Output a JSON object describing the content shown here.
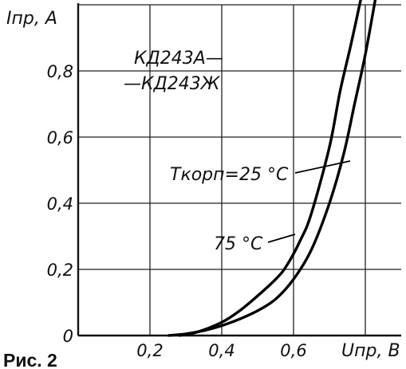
{
  "figure_caption": "Рис. 2",
  "chart_data": {
    "type": "line",
    "xlabel": "Uпр, В",
    "ylabel": "Iпр, А",
    "x_unit": "В",
    "y_unit": "А",
    "xlim": [
      0,
      0.9
    ],
    "ylim": [
      0,
      1.0
    ],
    "x_ticks": [
      {
        "value": 0.2,
        "label": "0,2"
      },
      {
        "value": 0.4,
        "label": "0,4"
      },
      {
        "value": 0.6,
        "label": "0,6"
      }
    ],
    "y_ticks": [
      {
        "value": 0,
        "label": "0"
      },
      {
        "value": 0.2,
        "label": "0,2"
      },
      {
        "value": 0.4,
        "label": "0,4"
      },
      {
        "value": 0.6,
        "label": "0,6"
      },
      {
        "value": 0.8,
        "label": "0,8"
      }
    ],
    "grid": true,
    "device_labels": [
      "КД243А—",
      "—КД243Ж"
    ],
    "series": [
      {
        "label": "Tкорп=25 °С",
        "x": [
          0.25,
          0.3,
          0.35,
          0.4,
          0.45,
          0.5,
          0.55,
          0.6,
          0.65,
          0.7,
          0.74,
          0.77,
          0.8,
          0.83
        ],
        "y": [
          0.0,
          0.005,
          0.015,
          0.03,
          0.05,
          0.075,
          0.11,
          0.17,
          0.26,
          0.4,
          0.55,
          0.7,
          0.85,
          1.03
        ]
      },
      {
        "label": "75 °С",
        "x": [
          0.28,
          0.33,
          0.4,
          0.45,
          0.5,
          0.55,
          0.58,
          0.62,
          0.65,
          0.7,
          0.73,
          0.76,
          0.79
        ],
        "y": [
          0.0,
          0.01,
          0.04,
          0.075,
          0.12,
          0.17,
          0.21,
          0.29,
          0.37,
          0.57,
          0.74,
          0.88,
          1.03
        ]
      }
    ]
  }
}
